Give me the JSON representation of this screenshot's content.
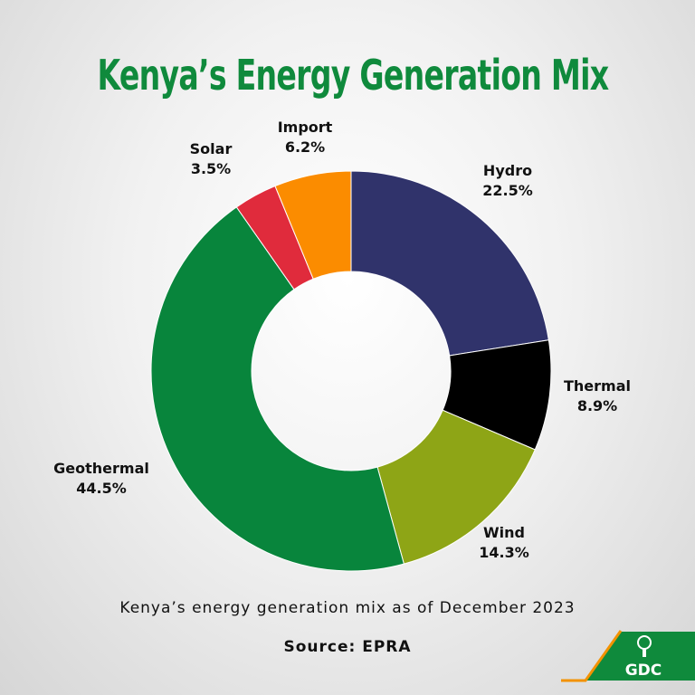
{
  "chart_data": {
    "type": "pie",
    "donut": true,
    "title": "Kenya’s Energy Generation Mix",
    "caption": "Kenya’s energy generation mix as of December 2023",
    "source": "Source: EPRA",
    "unit": "%",
    "start": "12 o'clock, clockwise",
    "slices": [
      {
        "label": "Hydro",
        "value": 22.5,
        "display": "22.5%",
        "color": "#30336b"
      },
      {
        "label": "Thermal",
        "value": 8.9,
        "display": "8.9%",
        "color": "#000000"
      },
      {
        "label": "Wind",
        "value": 14.3,
        "display": "14.3%",
        "color": "#8ea516"
      },
      {
        "label": "Geothermal",
        "value": 44.5,
        "display": "44.5%",
        "color": "#08853c"
      },
      {
        "label": "Solar",
        "value": 3.5,
        "display": "3.5%",
        "color": "#e02b3c"
      },
      {
        "label": "Import",
        "value": 6.2,
        "display": "6.2%",
        "color": "#fb8c00"
      }
    ]
  },
  "logo": {
    "text": "GDC",
    "color": "#0f8a3c",
    "accent": "#f39200"
  }
}
